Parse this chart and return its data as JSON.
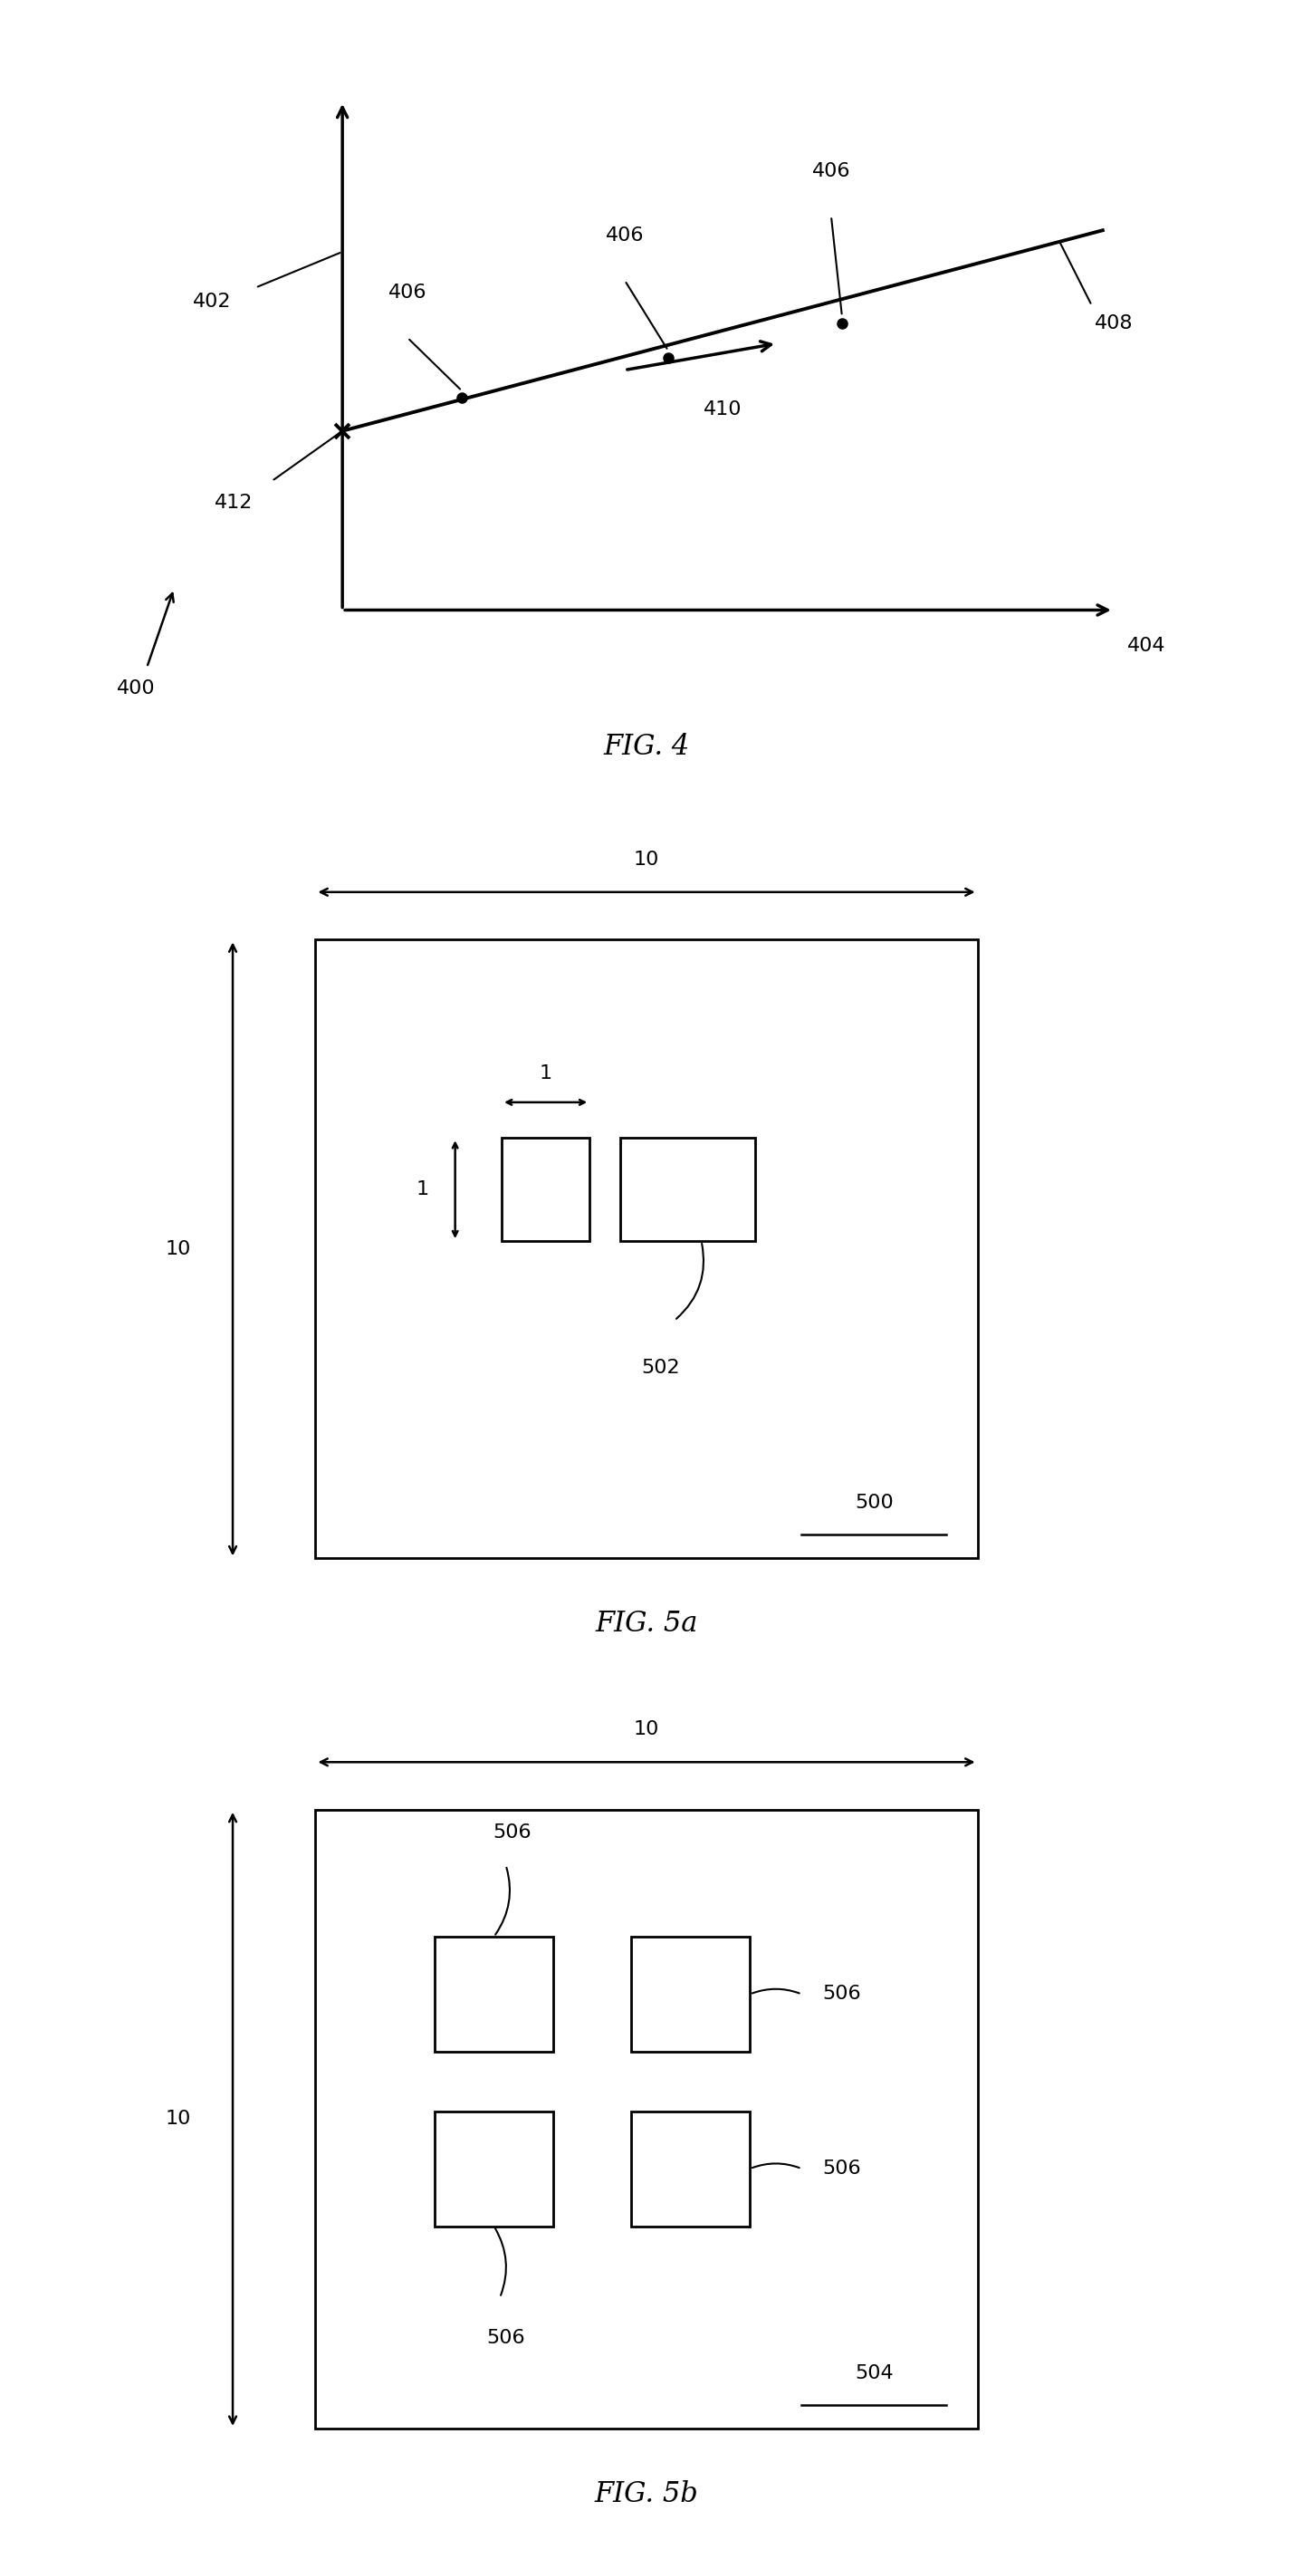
{
  "fig4": {
    "title": "FIG. 4",
    "label_400": "400",
    "label_402": "402",
    "label_404": "404",
    "label_406": "406",
    "label_408": "408",
    "label_410": "410",
    "label_412": "412"
  },
  "fig5a": {
    "title": "FIG. 5a",
    "label_500": "500",
    "label_502": "502",
    "dim_width_label": "10",
    "dim_height_label": "10",
    "dim_small_label": "1"
  },
  "fig5b": {
    "title": "FIG. 5b",
    "label_504": "504",
    "label_506": "506",
    "dim_width_label": "10",
    "dim_height_label": "10"
  },
  "bg_color": "#ffffff",
  "font_size_label": 16,
  "font_size_title": 22,
  "font_size_dim": 16
}
